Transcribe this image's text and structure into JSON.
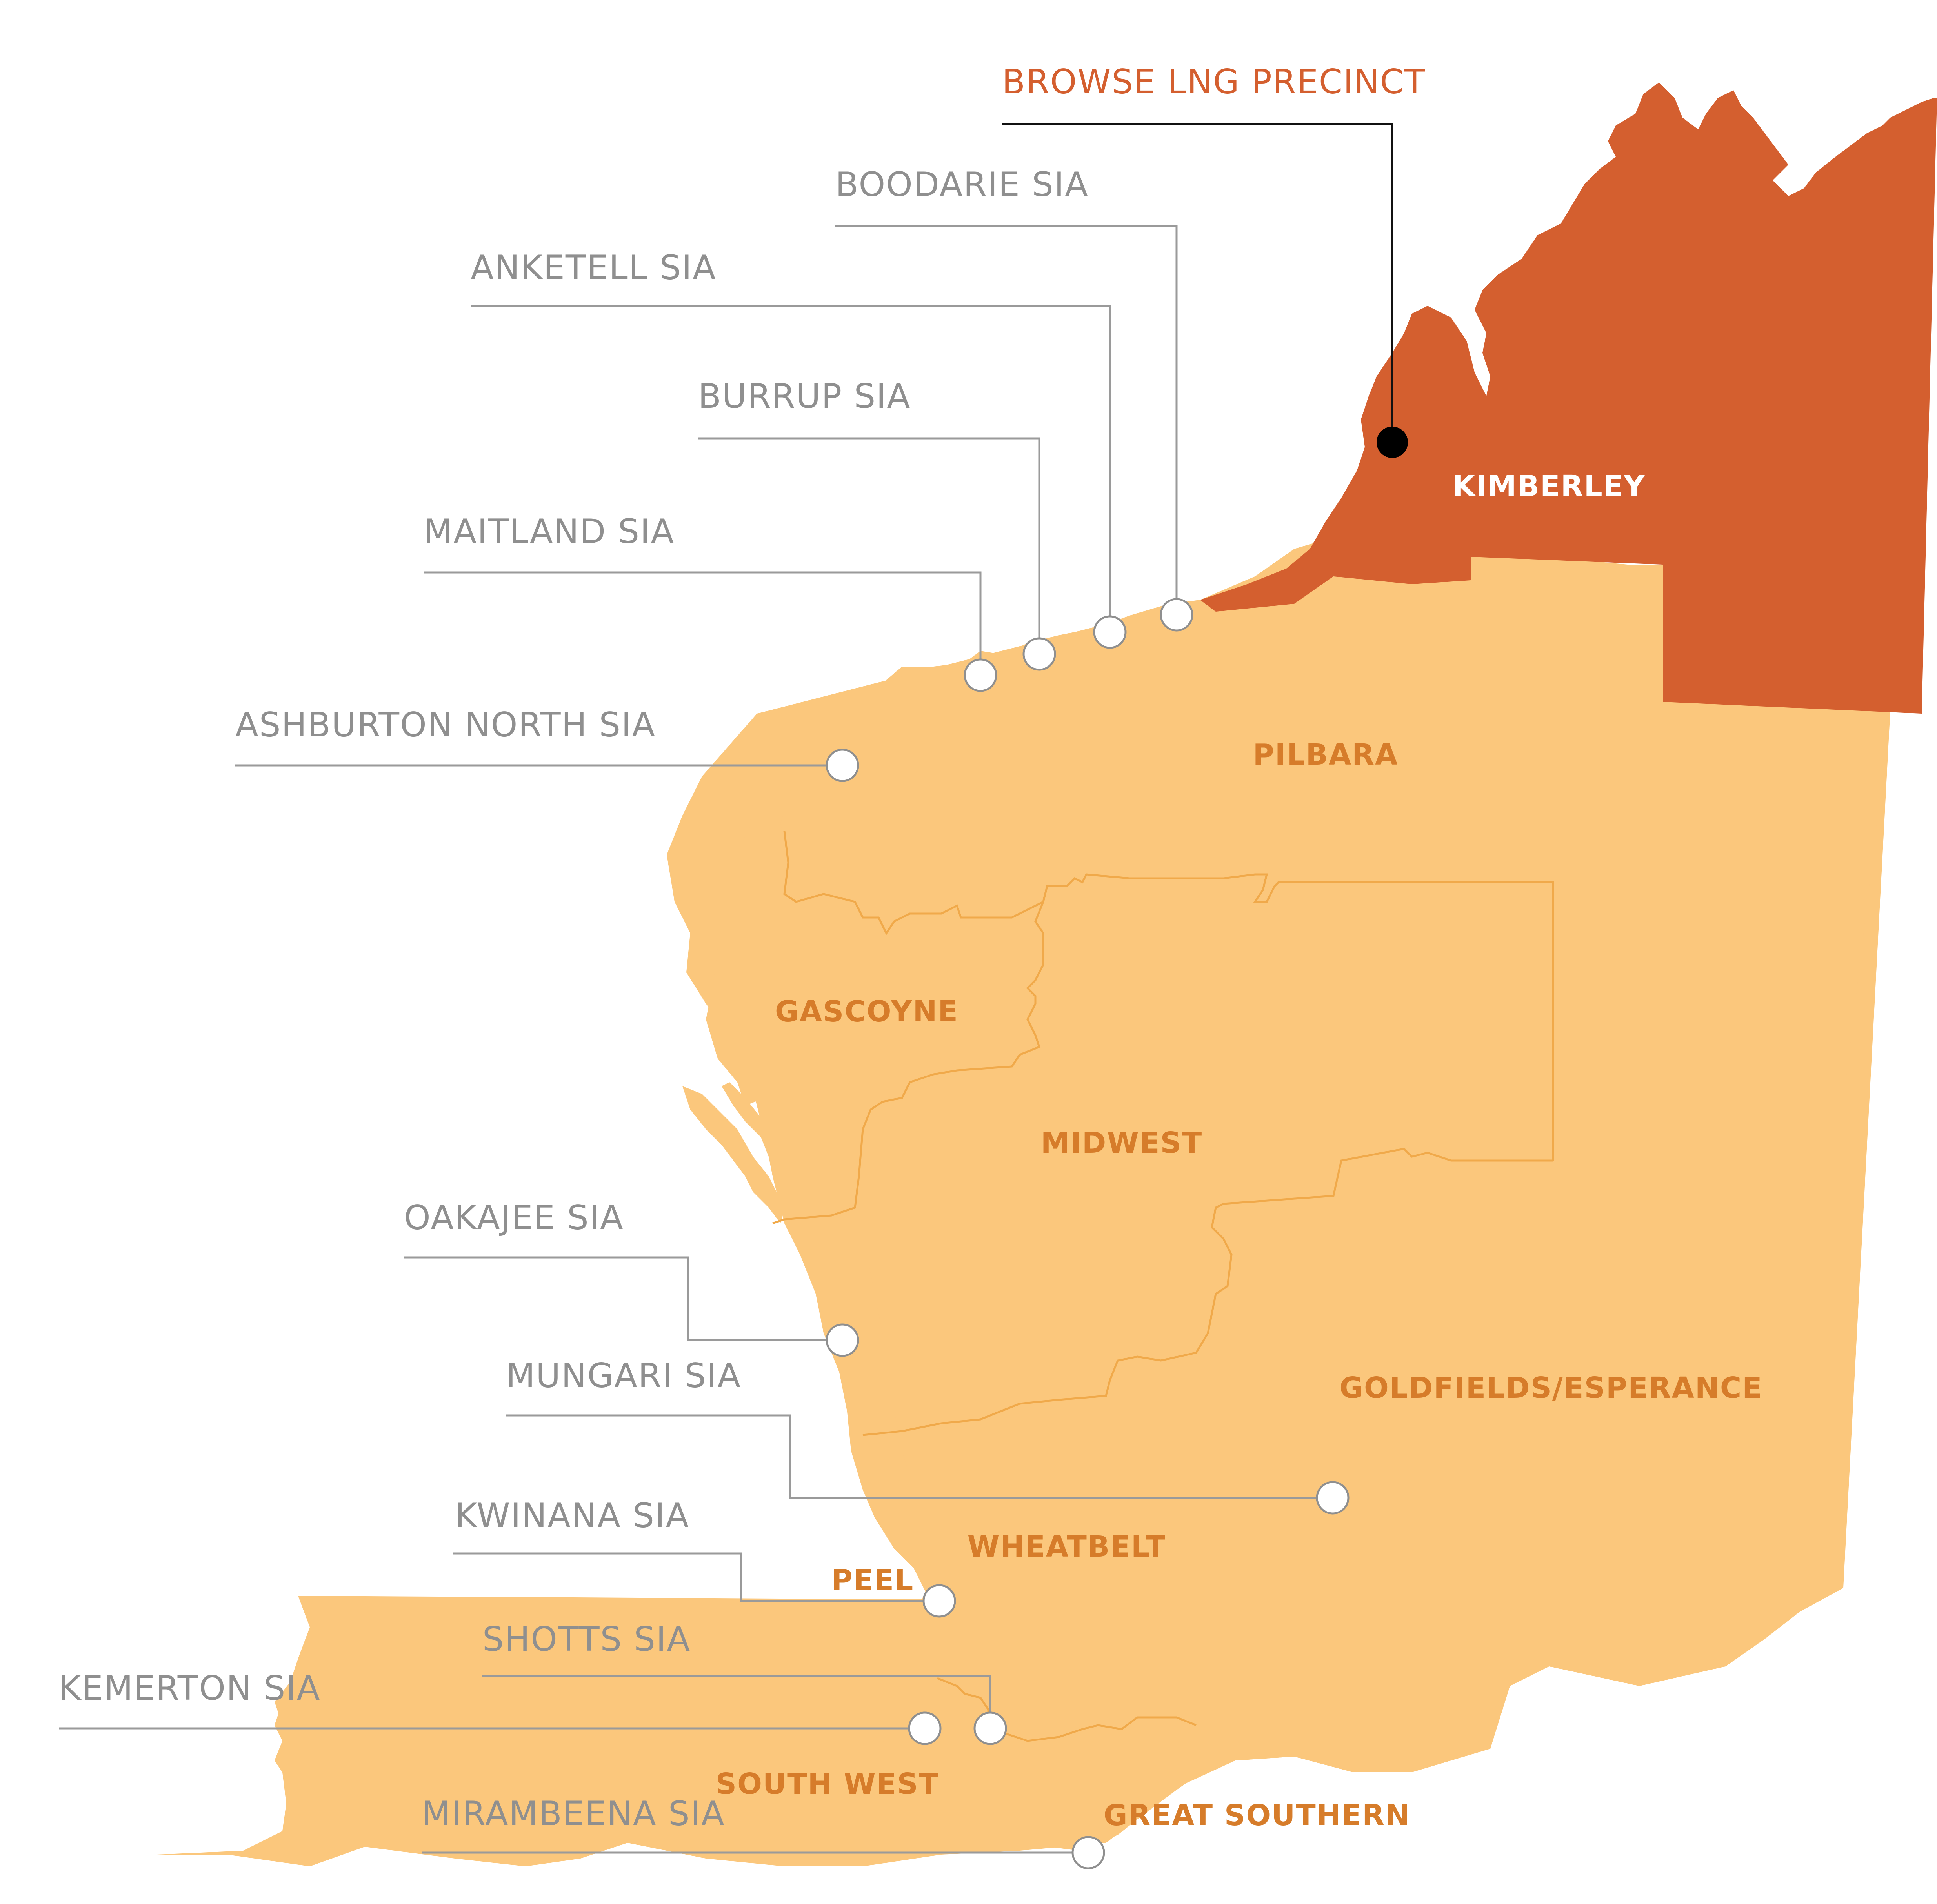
{
  "colors": {
    "land": "#fbc77c",
    "kimberley": "#d45f2f",
    "boundary": "#f0a94a",
    "region_text": "#d67c2a",
    "site_text": "#8f8f8f",
    "precinct_text": "#d45f2f",
    "background": "#ffffff"
  },
  "regions": {
    "kimberley": "KIMBERLEY",
    "pilbara": "PILBARA",
    "gascoyne": "GASCOYNE",
    "midwest": "MIDWEST",
    "goldfields": "GOLDFIELDS/ESPERANCE",
    "wheatbelt": "WHEATBELT",
    "peel": "PEEL",
    "south_west": "SOUTH WEST",
    "great_southern": "GREAT SOUTHERN"
  },
  "sites": {
    "browse": "BROWSE LNG PRECINCT",
    "boodarie": "BOODARIE SIA",
    "anketell": "ANKETELL SIA",
    "burrup": "BURRUP SIA",
    "maitland": "MAITLAND SIA",
    "ashburton": "ASHBURTON NORTH SIA",
    "oakajee": "OAKAJEE SIA",
    "mungari": "MUNGARI SIA",
    "kwinana": "KWINANA SIA",
    "shotts": "SHOTTS SIA",
    "kemerton": "KEMERTON SIA",
    "mirambeena": "MIRAMBEENA SIA"
  }
}
